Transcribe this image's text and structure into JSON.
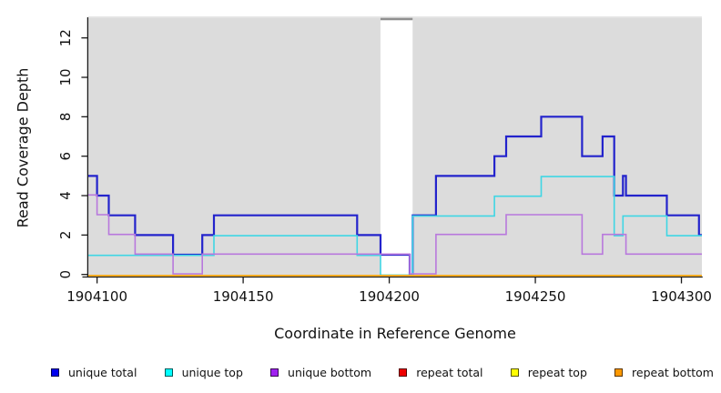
{
  "chart_data": {
    "type": "step-line",
    "title": "",
    "xlabel": "Coordinate in Reference Genome",
    "ylabel": "Read Coverage Depth",
    "xlim": [
      1904097,
      1904307
    ],
    "ylim": [
      0,
      13
    ],
    "x_ticks": [
      "1904100",
      "1904150",
      "1904200",
      "1904250",
      "1904300"
    ],
    "y_ticks": [
      "0",
      "2",
      "4",
      "6",
      "8",
      "10",
      "12"
    ],
    "grid": false,
    "shaded_regions": [
      {
        "x0": 1904097,
        "x1": 1904197,
        "color": "#dcdcdc"
      },
      {
        "x0": 1904208,
        "x1": 1904307,
        "color": "#dcdcdc"
      }
    ],
    "gap_region": {
      "x0": 1904197,
      "x1": 1904208,
      "color": "#ffffff",
      "top_line_color": "#8f8f8f"
    },
    "series": [
      {
        "name": "unique total",
        "color": "#2323cc",
        "width": 2.2,
        "steps": [
          [
            1904097,
            5
          ],
          [
            1904100,
            4
          ],
          [
            1904104,
            3
          ],
          [
            1904113,
            2
          ],
          [
            1904126,
            1
          ],
          [
            1904136,
            2
          ],
          [
            1904140,
            3
          ],
          [
            1904189,
            2
          ],
          [
            1904197,
            1
          ],
          [
            1904207,
            0
          ],
          [
            1904208,
            3
          ],
          [
            1904216,
            5
          ],
          [
            1904236,
            6
          ],
          [
            1904240,
            7
          ],
          [
            1904252,
            8
          ],
          [
            1904266,
            6
          ],
          [
            1904273,
            7
          ],
          [
            1904277,
            4
          ],
          [
            1904280,
            5
          ],
          [
            1904281,
            4
          ],
          [
            1904295,
            3
          ],
          [
            1904306,
            2
          ]
        ],
        "x_end": 1904307
      },
      {
        "name": "unique top",
        "color": "#3fd6e4",
        "width": 1.6,
        "steps": [
          [
            1904097,
            1
          ],
          [
            1904140,
            2
          ],
          [
            1904189,
            1
          ],
          [
            1904197,
            0
          ],
          [
            1904208,
            3
          ],
          [
            1904236,
            4
          ],
          [
            1904252,
            5
          ],
          [
            1904277,
            2
          ],
          [
            1904280,
            3
          ],
          [
            1904295,
            2
          ]
        ],
        "x_end": 1904307
      },
      {
        "name": "unique bottom",
        "color": "#b878dd",
        "width": 1.6,
        "steps": [
          [
            1904097,
            4
          ],
          [
            1904100,
            3
          ],
          [
            1904104,
            2
          ],
          [
            1904113,
            1
          ],
          [
            1904126,
            0
          ],
          [
            1904136,
            1
          ],
          [
            1904207,
            0
          ],
          [
            1904216,
            2
          ],
          [
            1904240,
            3
          ],
          [
            1904266,
            1
          ],
          [
            1904273,
            2
          ],
          [
            1904281,
            1
          ]
        ],
        "x_end": 1904307
      },
      {
        "name": "repeat total",
        "color": "#dd2222",
        "width": 1.2,
        "steps": [
          [
            1904097,
            0
          ]
        ],
        "x_end": 1904307
      },
      {
        "name": "repeat top",
        "color": "#f0e030",
        "width": 1.2,
        "steps": [
          [
            1904097,
            0
          ]
        ],
        "x_end": 1904307
      },
      {
        "name": "repeat bottom",
        "color": "#ffa500",
        "width": 1.6,
        "steps": [
          [
            1904097,
            0
          ]
        ],
        "x_end": 1904307
      }
    ],
    "legend": {
      "position": "bottom",
      "entries": [
        {
          "label": "unique total",
          "color": "#0000ee"
        },
        {
          "label": "unique top",
          "color": "#00ffff"
        },
        {
          "label": "unique bottom",
          "color": "#a020f0"
        },
        {
          "label": "repeat total",
          "color": "#ee0000"
        },
        {
          "label": "repeat top",
          "color": "#ffff00"
        },
        {
          "label": "repeat bottom",
          "color": "#ff9900"
        }
      ]
    }
  }
}
